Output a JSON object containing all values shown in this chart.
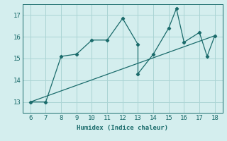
{
  "zigzag_x": [
    6,
    7,
    8,
    9,
    10,
    11,
    12,
    13,
    13,
    14,
    15,
    15.5,
    16,
    17,
    17.5,
    18
  ],
  "zigzag_y": [
    13.0,
    13.0,
    15.1,
    15.2,
    15.85,
    15.85,
    16.85,
    15.65,
    14.3,
    15.2,
    16.4,
    17.3,
    15.75,
    16.2,
    15.1,
    16.05
  ],
  "trend_x": [
    6,
    18
  ],
  "trend_y": [
    13.0,
    16.05
  ],
  "xlabel": "Humidex (Indice chaleur)",
  "xlim": [
    5.5,
    18.5
  ],
  "ylim": [
    12.5,
    17.5
  ],
  "xticks": [
    6,
    7,
    8,
    9,
    10,
    11,
    12,
    13,
    14,
    15,
    16,
    17,
    18
  ],
  "yticks": [
    13,
    14,
    15,
    16,
    17
  ],
  "line_color": "#1a6b6b",
  "bg_color": "#d4eeee",
  "grid_color": "#aad4d4"
}
